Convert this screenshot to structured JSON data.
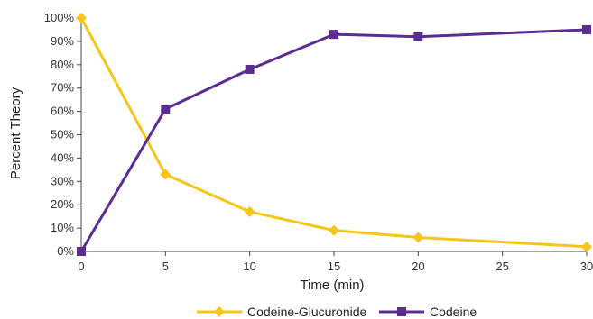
{
  "chart_data": {
    "type": "line",
    "xlabel": "Time (min)",
    "ylabel": "Percent Theory",
    "x_ticks": [
      "0",
      "5",
      "10",
      "15",
      "20",
      "25",
      "30"
    ],
    "y_ticks": [
      "0%",
      "10%",
      "20%",
      "30%",
      "40%",
      "50%",
      "60%",
      "70%",
      "80%",
      "90%",
      "100%"
    ],
    "x": [
      0,
      5,
      10,
      15,
      20,
      30
    ],
    "xlim": [
      0,
      30
    ],
    "ylim": [
      0,
      100
    ],
    "grid": false,
    "legend_position": "bottom",
    "series": [
      {
        "name": "Codeine-Glucuronide",
        "color": "#F5C518",
        "marker": "diamond",
        "values": [
          100,
          33,
          17,
          9,
          6,
          2
        ]
      },
      {
        "name": "Codeine",
        "color": "#5B2C91",
        "marker": "square",
        "values": [
          0,
          61,
          78,
          93,
          92,
          95
        ]
      }
    ]
  }
}
